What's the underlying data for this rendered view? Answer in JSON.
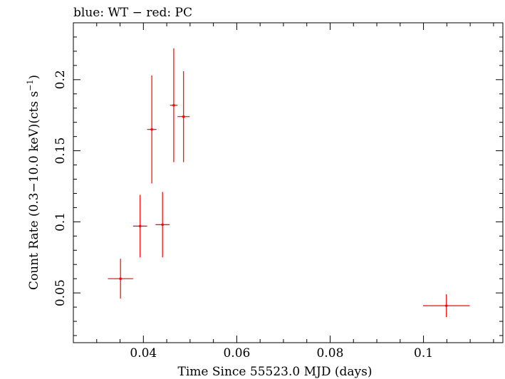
{
  "chart_data": {
    "type": "scatter",
    "title": "blue: WT − red: PC",
    "xlabel": "Time Since 55523.0 MJD (days)",
    "ylabel_main": "Count Rate (0.3−10.0 keV)(cts s",
    "ylabel_sup": "−1",
    "ylabel_close": ")",
    "xlim": [
      0.025,
      0.117
    ],
    "ylim": [
      0.015,
      0.24
    ],
    "x_ticks": [
      {
        "value": 0.04,
        "label": "0.04"
      },
      {
        "value": 0.06,
        "label": "0.06"
      },
      {
        "value": 0.08,
        "label": "0.08"
      },
      {
        "value": 0.1,
        "label": "0.1"
      }
    ],
    "y_ticks": [
      {
        "value": 0.05,
        "label": "0.05"
      },
      {
        "value": 0.1,
        "label": "0.1"
      },
      {
        "value": 0.15,
        "label": "0.15"
      },
      {
        "value": 0.2,
        "label": "0.2"
      }
    ],
    "grid": false,
    "series": [
      {
        "color": "#ff0000",
        "points": [
          {
            "x": 0.0351,
            "xerr": 0.0027,
            "y": 0.06,
            "yerr": 0.014
          },
          {
            "x": 0.0393,
            "xerr": 0.0015,
            "y": 0.097,
            "yerr": 0.022
          },
          {
            "x": 0.0418,
            "xerr": 0.001,
            "y": 0.165,
            "yerr": 0.038
          },
          {
            "x": 0.0441,
            "xerr": 0.0015,
            "y": 0.098,
            "yerr": 0.023
          },
          {
            "x": 0.0465,
            "xerr": 0.0008,
            "y": 0.182,
            "yerr": 0.04
          },
          {
            "x": 0.0486,
            "xerr": 0.0013,
            "y": 0.174,
            "yerr": 0.032
          },
          {
            "x": 0.1049,
            "xerr": 0.005,
            "y": 0.041,
            "yerr": 0.008
          }
        ]
      }
    ]
  }
}
